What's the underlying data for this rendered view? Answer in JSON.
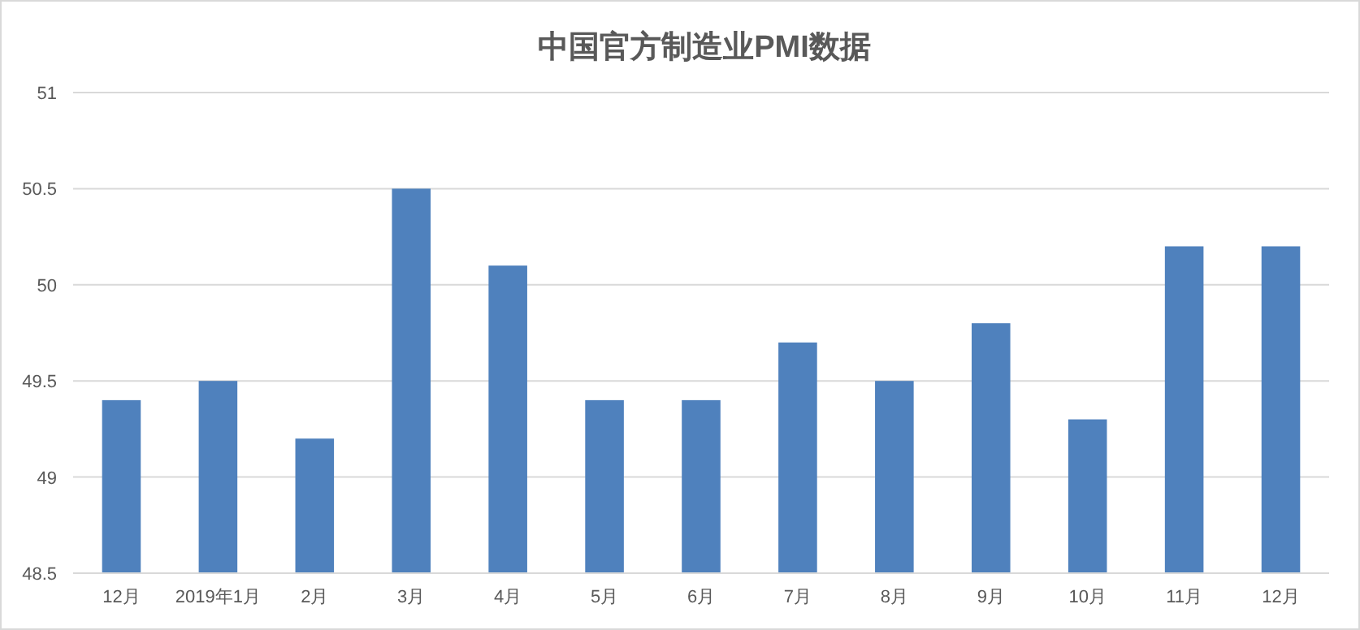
{
  "chart_data": {
    "type": "bar",
    "title": "中国官方制造业PMI数据",
    "categories": [
      "12月",
      "2019年1月",
      "2月",
      "3月",
      "4月",
      "5月",
      "6月",
      "7月",
      "8月",
      "9月",
      "10月",
      "11月",
      "12月"
    ],
    "values": [
      49.4,
      49.5,
      49.2,
      50.5,
      50.1,
      49.4,
      49.4,
      49.7,
      49.5,
      49.8,
      49.3,
      50.2,
      50.2
    ],
    "color": "#4f81bd",
    "ylim": [
      48.5,
      51
    ],
    "yticks": [
      48.5,
      49,
      49.5,
      50,
      50.5,
      51
    ],
    "grid": "y"
  }
}
